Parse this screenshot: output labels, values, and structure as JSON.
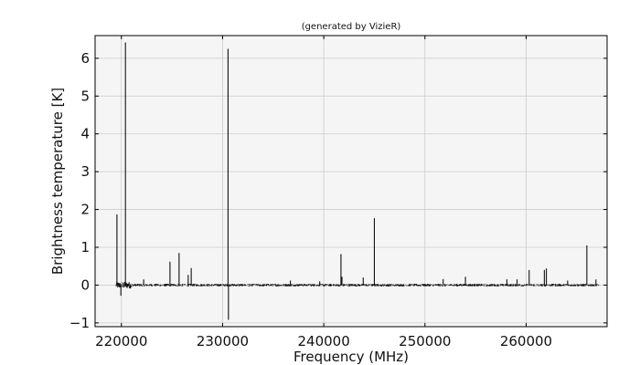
{
  "chart_data": {
    "type": "line",
    "title": "(generated by VizieR)",
    "xlabel": "Frequency (MHz)",
    "ylabel": "Brightness temperature [K]",
    "xlim": [
      217400,
      268000
    ],
    "ylim": [
      -1.1,
      6.6
    ],
    "xticks": [
      220000,
      230000,
      240000,
      250000,
      260000
    ],
    "yticks": [
      -1,
      0,
      1,
      2,
      3,
      4,
      5,
      6
    ],
    "xtick_labels": [
      "220000",
      "230000",
      "240000",
      "250000",
      "260000"
    ],
    "ytick_labels": [
      "−1",
      "0",
      "1",
      "2",
      "3",
      "4",
      "5",
      "6"
    ],
    "grid": true,
    "x_start": 219500,
    "x_end": 267200,
    "baseline": 0.0,
    "peaks": [
      {
        "x": 219560,
        "y": 1.87
      },
      {
        "x": 219950,
        "y": -0.28
      },
      {
        "x": 220400,
        "y": 6.42
      },
      {
        "x": 222200,
        "y": 0.15
      },
      {
        "x": 224800,
        "y": 0.62
      },
      {
        "x": 225700,
        "y": 0.85
      },
      {
        "x": 226600,
        "y": 0.27
      },
      {
        "x": 226900,
        "y": 0.45
      },
      {
        "x": 230540,
        "y": 6.25
      },
      {
        "x": 230580,
        "y": -0.92
      },
      {
        "x": 236700,
        "y": 0.12
      },
      {
        "x": 239600,
        "y": 0.1
      },
      {
        "x": 241700,
        "y": 0.82
      },
      {
        "x": 241800,
        "y": 0.22
      },
      {
        "x": 243900,
        "y": 0.2
      },
      {
        "x": 245000,
        "y": 1.77
      },
      {
        "x": 251800,
        "y": 0.16
      },
      {
        "x": 254000,
        "y": 0.22
      },
      {
        "x": 258100,
        "y": 0.15
      },
      {
        "x": 259100,
        "y": 0.15
      },
      {
        "x": 260300,
        "y": 0.4
      },
      {
        "x": 261800,
        "y": 0.4
      },
      {
        "x": 262000,
        "y": 0.44
      },
      {
        "x": 264100,
        "y": 0.12
      },
      {
        "x": 266000,
        "y": 1.05
      },
      {
        "x": 266900,
        "y": 0.15
      }
    ],
    "colors": {
      "line": "#111111",
      "plot_background": "#f5f5f5",
      "grid": "#cccccc",
      "axes": "#000000"
    }
  }
}
